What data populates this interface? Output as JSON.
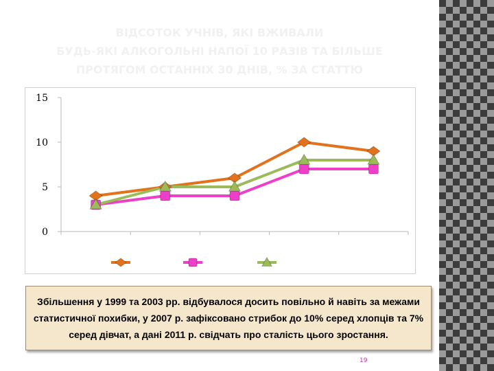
{
  "title_lines": [
    "ВІДСОТОК УЧНІВ, ЯКІ ВЖИВАЛИ",
    "БУДЬ-ЯКІ АЛКОГОЛЬНІ НАПОЇ 10 РАЗІВ ТА БІЛЬШЕ",
    "ПРОТЯГОМ ОСТАННІХ 30 ДНІВ, % ЗА СТАТТЮ"
  ],
  "caption": "Збільшення у 1999 та 2003 рр. відбувалося досить повільно й навіть за межами статистичної похибки, у 2007 р. зафіксовано стрибок до 10% серед хлопців та 7% серед дівчат, а дані 2011 р. свідчать  про сталість цього зростання.",
  "page_number": "19",
  "colors": {
    "series_1": "#e2721c",
    "series_2": "#ee3fc8",
    "series_3": "#9bbb59",
    "caption_bg": "#f5e7cb",
    "side_panel": "#3c3c3c"
  },
  "chart_data": {
    "type": "line",
    "categories": [
      "",
      "",
      "",
      "",
      ""
    ],
    "ylim": [
      0,
      15
    ],
    "yticks": [
      "0",
      "5",
      "10",
      "15"
    ],
    "grid": false,
    "legend": "bottom",
    "series": [
      {
        "values": [
          4,
          5,
          6,
          10,
          9
        ],
        "marker": "diamond",
        "color": "#e2721c"
      },
      {
        "values": [
          3,
          4,
          4,
          7,
          7
        ],
        "marker": "square",
        "color": "#ee3fc8"
      },
      {
        "values": [
          3,
          5,
          5,
          8,
          8
        ],
        "marker": "triangle",
        "color": "#9bbb59"
      }
    ]
  }
}
